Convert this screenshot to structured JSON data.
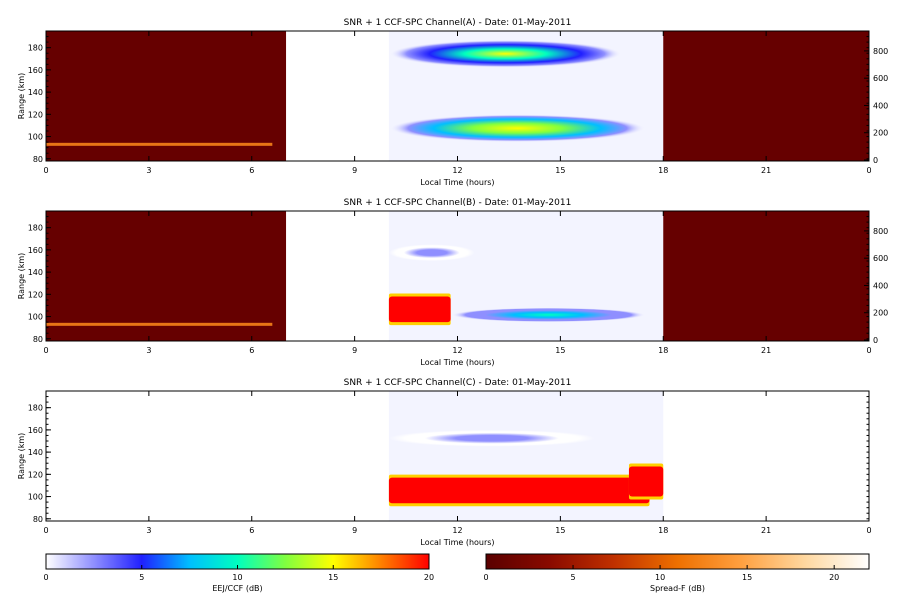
{
  "chart_data": [
    {
      "type": "heatmap",
      "title": "SNR + 1 CCF-SPC Channel(A) - Date: 01-May-2011",
      "xlabel": "Local Time (hours)",
      "ylabel": "Range (km)",
      "xlim": [
        0,
        24
      ],
      "ylim": [
        78,
        195
      ],
      "x_ticks": [
        "0",
        "3",
        "6",
        "9",
        "12",
        "15",
        "18",
        "21",
        "0"
      ],
      "y_ticks": [
        "80",
        "100",
        "120",
        "140",
        "160",
        "180"
      ],
      "y2_ticks": [
        "0",
        "200",
        "400",
        "600",
        "800"
      ],
      "night_spread_f": {
        "start": 0,
        "end": 7
      },
      "night_spread_f_late": {
        "start": 18,
        "end": 24
      },
      "spread_f_band": {
        "start": 0,
        "end": 6.6,
        "range": 93
      },
      "day_data": {
        "start": 10,
        "end": 18
      },
      "features": [
        {
          "layer": "upper",
          "start": 10,
          "end": 16.8,
          "range_top": 187,
          "range_bottom": 162,
          "peak_db": 14
        },
        {
          "layer": "lower",
          "start": 10,
          "end": 17.5,
          "range_top": 120,
          "range_bottom": 95,
          "peak_db": 16
        }
      ]
    },
    {
      "type": "heatmap",
      "title": "SNR + 1 CCF-SPC Channel(B) - Date: 01-May-2011",
      "xlabel": "Local Time (hours)",
      "ylabel": "Range (km)",
      "xlim": [
        0,
        24
      ],
      "ylim": [
        78,
        195
      ],
      "x_ticks": [
        "0",
        "3",
        "6",
        "9",
        "12",
        "15",
        "18",
        "21",
        "0"
      ],
      "y_ticks": [
        "80",
        "100",
        "120",
        "140",
        "160",
        "180"
      ],
      "y2_ticks": [
        "0",
        "200",
        "400",
        "600",
        "800"
      ],
      "night_spread_f": {
        "start": 0,
        "end": 7
      },
      "night_spread_f_late": {
        "start": 18,
        "end": 24
      },
      "spread_f_band": {
        "start": 0,
        "end": 6.6,
        "range": 93
      },
      "day_data": {
        "start": 10,
        "end": 18
      },
      "features": [
        {
          "layer": "upper",
          "start": 10,
          "end": 12.5,
          "range_top": 165,
          "range_bottom": 150,
          "peak_db": 3
        },
        {
          "layer": "lower-saturated",
          "start": 10,
          "end": 11.8,
          "range_top": 118,
          "range_bottom": 95,
          "peak_db": 20
        },
        {
          "layer": "lower",
          "start": 11.8,
          "end": 17.5,
          "range_top": 108,
          "range_bottom": 95,
          "peak_db": 9
        }
      ]
    },
    {
      "type": "heatmap",
      "title": "SNR + 1 CCF-SPC Channel(C) - Date: 01-May-2011",
      "xlabel": "Local Time (hours)",
      "ylabel": "Range (km)",
      "xlim": [
        0,
        24
      ],
      "ylim": [
        78,
        195
      ],
      "x_ticks": [
        "0",
        "3",
        "6",
        "9",
        "12",
        "15",
        "18",
        "21",
        "0"
      ],
      "y_ticks": [
        "80",
        "100",
        "120",
        "140",
        "160",
        "180"
      ],
      "day_data": {
        "start": 10,
        "end": 18
      },
      "features": [
        {
          "layer": "upper",
          "start": 10,
          "end": 16,
          "range_top": 160,
          "range_bottom": 145,
          "peak_db": 2
        },
        {
          "layer": "lower-saturated",
          "start": 10,
          "end": 17.6,
          "range_top": 117,
          "range_bottom": 94,
          "peak_db": 20
        },
        {
          "layer": "lower-saturated-rise",
          "start": 17.0,
          "end": 18,
          "range_top": 127,
          "range_bottom": 100,
          "peak_db": 20
        }
      ]
    }
  ],
  "colorbars": [
    {
      "label": "EEJ/CCF (dB)",
      "ticks": [
        "0",
        "5",
        "10",
        "15",
        "20"
      ],
      "min": 0,
      "max": 20,
      "colors": [
        "#ffffff",
        "#8f8fff",
        "#2020ff",
        "#00bfff",
        "#00ffbf",
        "#80ff40",
        "#ffff00",
        "#ff8000",
        "#ff0000"
      ]
    },
    {
      "label": "Spread-F (dB)",
      "ticks": [
        "0",
        "5",
        "10",
        "15",
        "20"
      ],
      "min": 0,
      "max": 22,
      "colors": [
        "#5a0000",
        "#8a0a00",
        "#c03000",
        "#ee7000",
        "#ffa040",
        "#ffd8a0",
        "#ffffff"
      ]
    }
  ],
  "colors": {
    "spread_f_night": "#660000",
    "spread_f_band": "#ff8a1a",
    "frame": "#000000"
  }
}
